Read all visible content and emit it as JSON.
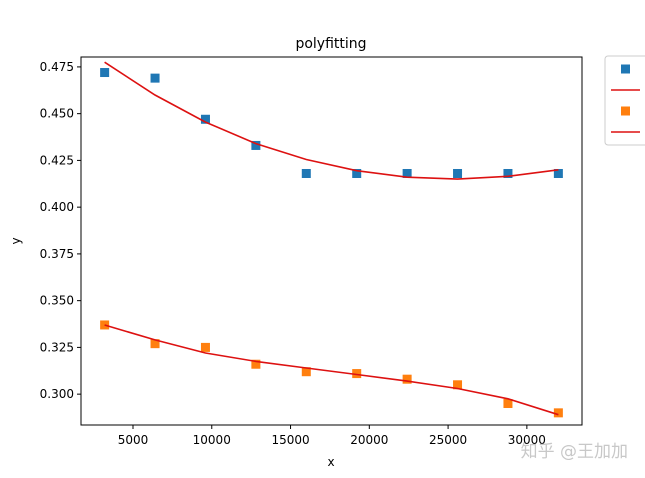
{
  "chart_data": {
    "type": "scatter",
    "title": "polyfitting",
    "xlabel": "x",
    "ylabel": "y",
    "xlim": [
      1700,
      33500
    ],
    "ylim": [
      0.2835,
      0.4803
    ],
    "xticks": [
      5000,
      10000,
      15000,
      20000,
      25000,
      30000
    ],
    "yticks": [
      0.3,
      0.325,
      0.35,
      0.375,
      0.4,
      0.425,
      0.45,
      0.475
    ],
    "x": [
      3200,
      6400,
      9600,
      12800,
      16000,
      19200,
      22400,
      25600,
      28800,
      32000
    ],
    "series": [
      {
        "kind": "points",
        "marker": "square",
        "color": "#1f77b4",
        "values": [
          0.472,
          0.469,
          0.447,
          0.433,
          0.418,
          0.418,
          0.418,
          0.418,
          0.418,
          0.418
        ]
      },
      {
        "kind": "line",
        "color": "#dd1111",
        "values": [
          0.4775,
          0.46,
          0.4455,
          0.434,
          0.4255,
          0.4195,
          0.416,
          0.415,
          0.4165,
          0.42
        ]
      },
      {
        "kind": "points",
        "marker": "square",
        "color": "#ff7f0e",
        "values": [
          0.337,
          0.327,
          0.325,
          0.316,
          0.312,
          0.311,
          0.308,
          0.305,
          0.295,
          0.29
        ]
      },
      {
        "kind": "line",
        "color": "#dd1111",
        "values": [
          0.337,
          0.329,
          0.322,
          0.3175,
          0.314,
          0.3105,
          0.307,
          0.303,
          0.2975,
          0.289
        ]
      }
    ],
    "legend": {
      "placement": "outside-top-right"
    },
    "grid": false
  },
  "watermark": "知乎 @王加加"
}
